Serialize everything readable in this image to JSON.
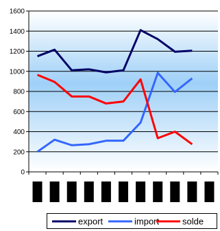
{
  "chart_data": {
    "type": "line",
    "x": [
      1,
      2,
      3,
      4,
      5,
      6,
      7,
      8,
      9,
      10,
      11
    ],
    "ylim": [
      0,
      1600
    ],
    "yticks": [
      0,
      200,
      400,
      600,
      800,
      1000,
      1200,
      1400,
      1600
    ],
    "grid": true,
    "legend_position": "bottom",
    "category_labels_visible": false,
    "series": [
      {
        "name": "export",
        "color": "#000066",
        "values": [
          1150,
          1215,
          1010,
          1020,
          990,
          1010,
          1410,
          1320,
          1195,
          1205,
          null
        ]
      },
      {
        "name": "import",
        "color": "#3366ff",
        "values": [
          200,
          320,
          265,
          275,
          310,
          310,
          490,
          985,
          795,
          930,
          null
        ]
      },
      {
        "name": "solde",
        "color": "#ff0000",
        "values": [
          965,
          895,
          750,
          750,
          680,
          700,
          920,
          335,
          400,
          275,
          null
        ]
      }
    ]
  }
}
